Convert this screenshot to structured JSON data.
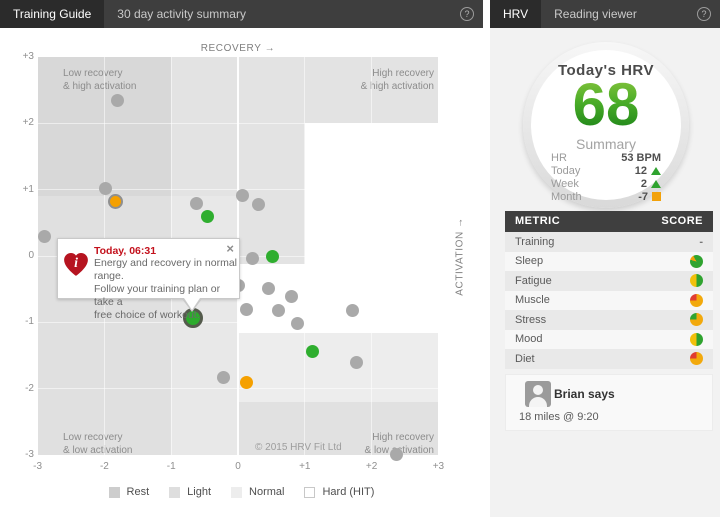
{
  "left_panel": {
    "tab": "Training Guide",
    "title": "30 day activity summary",
    "help_icon": "?",
    "chart": {
      "type": "scatter",
      "xlabel": "RECOVERY →",
      "ylabel": "ACTIVATION →",
      "xlim": [
        -3,
        3
      ],
      "ylim": [
        -3,
        3
      ],
      "x_ticks": [
        "-3",
        "-2",
        "-1",
        "0",
        "+1",
        "+2",
        "+3"
      ],
      "y_ticks": [
        "+3",
        "+2",
        "+1",
        "0",
        "-1",
        "-2",
        "-3"
      ],
      "quadrant_labels": {
        "top_left": "Low recovery\n& high activation",
        "top_right": "High recovery\n& high activation",
        "bottom_left": "Low recovery\n& low activation",
        "bottom_right": "High recovery\n& low activation"
      },
      "copyright": "© 2015 HRV Fit Ltd",
      "legend": [
        {
          "label": "Rest",
          "color": "#cdcdcd",
          "border": false
        },
        {
          "label": "Light",
          "color": "#dedede",
          "border": false
        },
        {
          "label": "Normal",
          "color": "#ededed",
          "border": false
        },
        {
          "label": "Hard (HIT)",
          "color": "#ffffff",
          "border": true
        }
      ],
      "points": [
        {
          "x": -1.8,
          "y": 2.35,
          "type": "gray"
        },
        {
          "x": -1.99,
          "y": 1.02,
          "type": "gray"
        },
        {
          "x": -1.83,
          "y": 0.82,
          "type": "orange-ring"
        },
        {
          "x": -2.9,
          "y": 0.29,
          "type": "gray"
        },
        {
          "x": -0.62,
          "y": 0.79,
          "type": "gray"
        },
        {
          "x": -0.45,
          "y": 0.6,
          "type": "green"
        },
        {
          "x": 0.07,
          "y": 0.91,
          "type": "gray"
        },
        {
          "x": 0.3,
          "y": 0.78,
          "type": "gray"
        },
        {
          "x": 0.22,
          "y": -0.04,
          "type": "gray"
        },
        {
          "x": 0.51,
          "y": -0.01,
          "type": "green"
        },
        {
          "x": -0.07,
          "y": -0.51,
          "type": "gray"
        },
        {
          "x": 0.01,
          "y": -0.44,
          "type": "gray"
        },
        {
          "x": 0.45,
          "y": -0.49,
          "type": "gray"
        },
        {
          "x": 0.8,
          "y": -0.61,
          "type": "gray"
        },
        {
          "x": 0.13,
          "y": -0.81,
          "type": "gray"
        },
        {
          "x": 0.61,
          "y": -0.82,
          "type": "gray"
        },
        {
          "x": 0.89,
          "y": -1.02,
          "type": "gray"
        },
        {
          "x": 1.72,
          "y": -0.82,
          "type": "gray"
        },
        {
          "x": -0.67,
          "y": -0.94,
          "type": "today"
        },
        {
          "x": 1.11,
          "y": -1.44,
          "type": "green"
        },
        {
          "x": 1.77,
          "y": -1.61,
          "type": "gray"
        },
        {
          "x": -0.21,
          "y": -1.83,
          "type": "gray"
        },
        {
          "x": 0.13,
          "y": -1.91,
          "type": "orange"
        },
        {
          "x": 2.38,
          "y": -2.99,
          "type": "gray"
        }
      ],
      "tooltip": {
        "title": "Today, 06:31",
        "lines": [
          "Energy and recovery in normal range.",
          "Follow your training plan or take a",
          "free choice of workout."
        ],
        "close_icon": "×"
      }
    }
  },
  "right_panel": {
    "tab": "HRV",
    "title": "Reading viewer",
    "help_icon": "?",
    "gauge": {
      "label": "Today's HRV",
      "value": "68",
      "summary": "Summary",
      "rows": [
        {
          "label": "HR",
          "value": "53 BPM",
          "indicator": null
        },
        {
          "label": "Today",
          "value": "12",
          "indicator": "up"
        },
        {
          "label": "Week",
          "value": "2",
          "indicator": "up"
        },
        {
          "label": "Month",
          "value": "-7",
          "indicator": "flat"
        }
      ]
    },
    "metrics": {
      "col_metric": "METRIC",
      "col_score": "SCORE",
      "rows": [
        {
          "label": "Training",
          "score_text": "-",
          "icon": null
        },
        {
          "label": "Sleep",
          "score_text": "",
          "icon": "green-mostly"
        },
        {
          "label": "Fatigue",
          "score_text": "",
          "icon": "half-yellow-green"
        },
        {
          "label": "Muscle",
          "score_text": "",
          "icon": "yellow-red-quarter"
        },
        {
          "label": "Stress",
          "score_text": "",
          "icon": "yellow-green-quarter"
        },
        {
          "label": "Mood",
          "score_text": "",
          "icon": "half-yellow-green"
        },
        {
          "label": "Diet",
          "score_text": "",
          "icon": "yellow-red-quarter"
        }
      ]
    },
    "comment": {
      "author": "Brian says",
      "text": "18 miles @ 9:20"
    }
  },
  "colors": {
    "accent_green": "#2fa32f",
    "accent_orange": "#f2a10a",
    "accent_red": "#e03c31",
    "dot_gray": "#a9a9a9",
    "titlebar_dark": "#3e3e3e",
    "tab_dark": "#2b2b2b"
  }
}
